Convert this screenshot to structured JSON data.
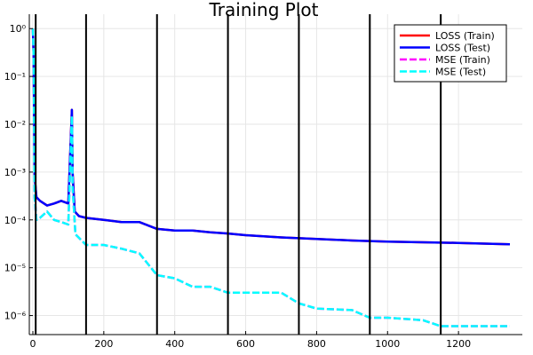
{
  "chart_data": {
    "type": "line",
    "title": "Training Plot",
    "xlabel": "",
    "ylabel": "",
    "xlim": [
      -10,
      1380
    ],
    "ylim": [
      4e-07,
      2
    ],
    "yscale": "log",
    "grid": true,
    "legend_position": "top-right",
    "x_ticks": [
      0,
      200,
      400,
      600,
      800,
      1000,
      1200
    ],
    "y_ticks": [
      {
        "value": 1,
        "label": "10⁰"
      },
      {
        "value": 0.1,
        "label": "10⁻¹"
      },
      {
        "value": 0.01,
        "label": "10⁻²"
      },
      {
        "value": 0.001,
        "label": "10⁻³"
      },
      {
        "value": 0.0001,
        "label": "10⁻⁴"
      },
      {
        "value": 1e-05,
        "label": "10⁻⁵"
      },
      {
        "value": 1e-06,
        "label": "10⁻⁶"
      }
    ],
    "vertical_lines": [
      8,
      150,
      350,
      550,
      750,
      950,
      1150
    ],
    "series": [
      {
        "name": "LOSS (Train)",
        "color": "#ff0000",
        "style": "solid",
        "x": [
          0,
          2,
          5,
          10,
          20,
          40,
          60,
          80,
          100,
          110,
          112,
          118,
          130,
          150,
          200,
          250,
          300,
          350,
          400,
          450,
          500,
          550,
          600,
          700,
          800,
          900,
          1000,
          1100,
          1200,
          1345
        ],
        "y": [
          1.0,
          0.3,
          0.0008,
          0.0003,
          0.00025,
          0.0002,
          0.00022,
          0.00025,
          0.00022,
          0.02,
          0.001,
          0.00015,
          0.00012,
          0.00011,
          0.0001,
          9e-05,
          9e-05,
          6.5e-05,
          6e-05,
          6e-05,
          5.5e-05,
          5.2e-05,
          4.8e-05,
          4.3e-05,
          4e-05,
          3.7e-05,
          3.5e-05,
          3.4e-05,
          3.3e-05,
          3.1e-05
        ]
      },
      {
        "name": "LOSS (Test)",
        "color": "#0000ff",
        "style": "solid",
        "x": [
          0,
          2,
          5,
          10,
          20,
          40,
          60,
          80,
          100,
          110,
          112,
          118,
          130,
          150,
          200,
          250,
          300,
          350,
          400,
          450,
          500,
          550,
          600,
          700,
          800,
          900,
          1000,
          1100,
          1200,
          1345
        ],
        "y": [
          1.0,
          0.3,
          0.0008,
          0.0003,
          0.00025,
          0.0002,
          0.00022,
          0.00025,
          0.00022,
          0.02,
          0.001,
          0.00015,
          0.00012,
          0.00011,
          0.0001,
          9e-05,
          9e-05,
          6.5e-05,
          6e-05,
          6e-05,
          5.5e-05,
          5.2e-05,
          4.8e-05,
          4.3e-05,
          4e-05,
          3.7e-05,
          3.5e-05,
          3.4e-05,
          3.3e-05,
          3.1e-05
        ]
      },
      {
        "name": "MSE (Train)",
        "color": "#ff00ff",
        "style": "dashed",
        "x": [
          0,
          2,
          5,
          10,
          20,
          40,
          60,
          80,
          100,
          110,
          112,
          120,
          150,
          200,
          250,
          300,
          350,
          400,
          450,
          500,
          550,
          600,
          700,
          750,
          800,
          900,
          950,
          1000,
          1100,
          1150,
          1200,
          1345
        ],
        "y": [
          1.0,
          0.3,
          0.0003,
          0.0001,
          0.00011,
          0.00015,
          0.0001,
          9e-05,
          8e-05,
          0.015,
          0.0005,
          5e-05,
          3e-05,
          3e-05,
          2.5e-05,
          2e-05,
          7e-06,
          6e-06,
          4e-06,
          4e-06,
          3e-06,
          3e-06,
          3e-06,
          1.8e-06,
          1.4e-06,
          1.3e-06,
          9e-07,
          9e-07,
          8e-07,
          6e-07,
          6e-07,
          6e-07
        ]
      },
      {
        "name": "MSE (Test)",
        "color": "#00ffff",
        "style": "dashed",
        "x": [
          0,
          2,
          5,
          10,
          20,
          40,
          60,
          80,
          100,
          110,
          112,
          120,
          150,
          200,
          250,
          300,
          350,
          400,
          450,
          500,
          550,
          600,
          700,
          750,
          800,
          900,
          950,
          1000,
          1100,
          1150,
          1200,
          1345
        ],
        "y": [
          1.0,
          0.3,
          0.0003,
          0.0001,
          0.00011,
          0.00015,
          0.0001,
          9e-05,
          8e-05,
          0.015,
          0.0005,
          5e-05,
          3e-05,
          3e-05,
          2.5e-05,
          2e-05,
          7e-06,
          6e-06,
          4e-06,
          4e-06,
          3e-06,
          3e-06,
          3e-06,
          1.8e-06,
          1.4e-06,
          1.3e-06,
          9e-07,
          9e-07,
          8e-07,
          6e-07,
          6e-07,
          6e-07
        ]
      }
    ]
  }
}
